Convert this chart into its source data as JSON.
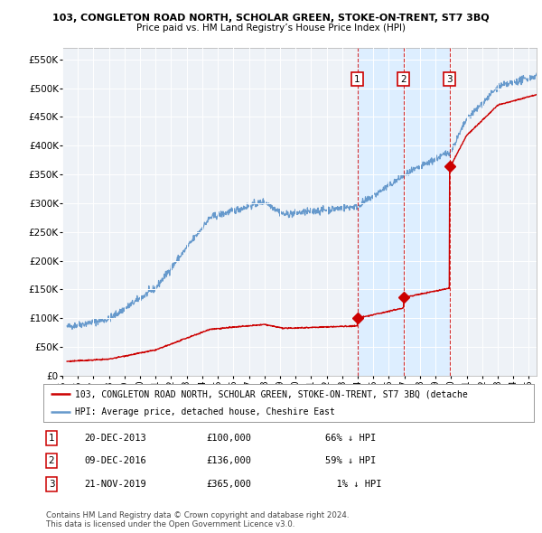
{
  "title_line1": "103, CONGLETON ROAD NORTH, SCHOLAR GREEN, STOKE-ON-TRENT, ST7 3BQ",
  "title_line2": "Price paid vs. HM Land Registry’s House Price Index (HPI)",
  "ylim": [
    0,
    570000
  ],
  "yticks": [
    0,
    50000,
    100000,
    150000,
    200000,
    250000,
    300000,
    350000,
    400000,
    450000,
    500000,
    550000
  ],
  "xlim_start": 1995.3,
  "xlim_end": 2025.5,
  "sale1_date": 2013.97,
  "sale1_price": 100000,
  "sale2_date": 2016.94,
  "sale2_price": 136000,
  "sale3_date": 2019.9,
  "sale3_price": 365000,
  "legend_line1": "103, CONGLETON ROAD NORTH, SCHOLAR GREEN, STOKE-ON-TRENT, ST7 3BQ (detache",
  "legend_line2": "HPI: Average price, detached house, Cheshire East",
  "table_entries": [
    {
      "num": "1",
      "date": "20-DEC-2013",
      "price": "£100,000",
      "pct": "66% ↓ HPI"
    },
    {
      "num": "2",
      "date": "09-DEC-2016",
      "price": "£136,000",
      "pct": "59% ↓ HPI"
    },
    {
      "num": "3",
      "date": "21-NOV-2019",
      "price": "£365,000",
      "pct": "  1% ↓ HPI"
    }
  ],
  "footnote1": "Contains HM Land Registry data © Crown copyright and database right 2024.",
  "footnote2": "This data is licensed under the Open Government Licence v3.0.",
  "sale_color": "#cc0000",
  "hpi_color": "#6699cc",
  "shade_color": "#ddeeff",
  "bg_color": "#ffffff",
  "plot_bg": "#eef2f7"
}
